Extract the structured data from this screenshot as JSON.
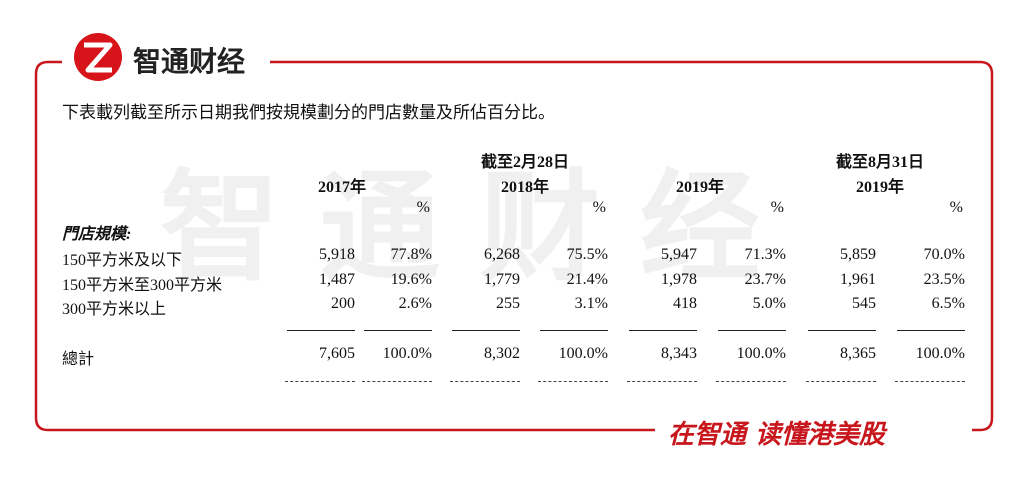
{
  "brand": {
    "name": "智通财经"
  },
  "intro": "下表載列截至所示日期我們按規模劃分的門店數量及所佔百分比。",
  "table": {
    "period_headers": [
      "截至2月28日",
      "截至8月31日"
    ],
    "years": [
      "2017年",
      "2018年",
      "2019年",
      "2019年"
    ],
    "percent_sign": "%",
    "section": "門店規模:",
    "rows": [
      [
        "150平方米及以下",
        "5,918",
        "77.8%",
        "6,268",
        "75.5%",
        "5,947",
        "71.3%",
        "5,859",
        "70.0%"
      ],
      [
        "150平方米至300平方米",
        "1,487",
        "19.6%",
        "1,779",
        "21.4%",
        "1,978",
        "23.7%",
        "1,961",
        "23.5%"
      ],
      [
        "300平方米以上",
        "200",
        "2.6%",
        "255",
        "3.1%",
        "418",
        "5.0%",
        "545",
        "6.5%"
      ]
    ],
    "total": [
      "總計",
      "7,605",
      "100.0%",
      "8,302",
      "100.0%",
      "8,343",
      "100.0%",
      "8,365",
      "100.0%"
    ]
  },
  "slogan": "在智通 读懂港美股"
}
